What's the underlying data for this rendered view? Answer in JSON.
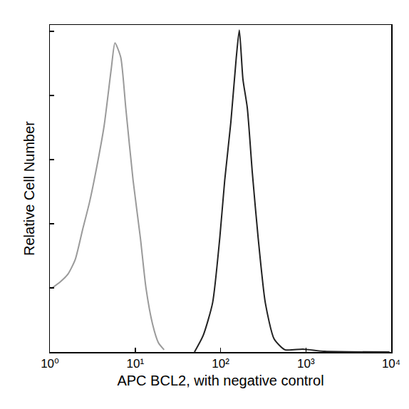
{
  "chart_data": {
    "type": "line",
    "x_label": "APC BCL2, with negative control",
    "y_label": "Relative Cell Number",
    "log": "x",
    "xlim": [
      1,
      10000
    ],
    "xticks": [
      {
        "value": 1,
        "label": "10⁰"
      },
      {
        "value": 10,
        "label": "10¹"
      },
      {
        "value": 100,
        "label": "10²"
      },
      {
        "value": 1000,
        "label": "10³"
      },
      {
        "value": 10000,
        "label": "10⁴"
      }
    ],
    "ylim": [
      0,
      102
    ],
    "yticks": [
      0,
      20,
      40,
      60,
      80,
      100
    ],
    "tick_labels": "x",
    "grid": false,
    "series": [
      {
        "color": "#9a9a9a",
        "x": [
          1.04,
          1.34,
          1.63,
          1.98,
          2.4,
          2.92,
          3.56,
          4.32,
          5.25,
          5.79,
          6.77,
          7.76,
          9.44,
          11.5,
          13.4,
          16.0,
          18.7,
          21.8
        ],
        "values": [
          19.8,
          22,
          24.3,
          28.8,
          37.8,
          46.8,
          58,
          70.5,
          88.5,
          96.4,
          91.9,
          76,
          53.6,
          35.6,
          19.8,
          8.6,
          2.9,
          0.7
        ]
      },
      {
        "color": "#222222",
        "x": [
          49.5,
          62.7,
          80.7,
          98,
          112,
          132,
          153,
          166,
          183,
          206,
          236,
          276,
          335,
          424,
          568,
          925,
          1660,
          9550
        ],
        "values": [
          0,
          5.2,
          15.3,
          35.6,
          53.6,
          71.6,
          91.9,
          100.4,
          85.1,
          76.1,
          55.8,
          35.6,
          15.3,
          4.1,
          0.7,
          0.9,
          0.2,
          0
        ]
      }
    ]
  }
}
